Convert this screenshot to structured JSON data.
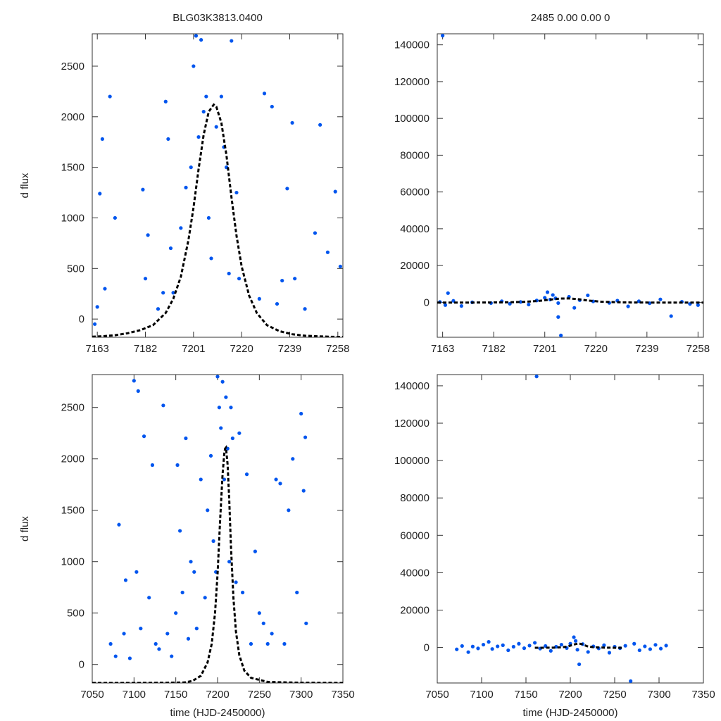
{
  "figure": {
    "left_title": "BLG03K3813.0400",
    "right_title": "2485  0.00  0.00  0",
    "colors": {
      "points": "#0055ee",
      "model": "#000000",
      "frame": "#333333"
    }
  },
  "chart_data": [
    {
      "type": "scatter",
      "panel": "top-left",
      "title": "BLG03K3813.0400",
      "xlabel": "",
      "ylabel": "d flux",
      "xlim": [
        7161,
        7260
      ],
      "ylim": [
        -180,
        2820
      ],
      "xticks": [
        7163,
        7182,
        7201,
        7220,
        7239,
        7258
      ],
      "yticks": [
        0,
        500,
        1000,
        1500,
        2000,
        2500
      ],
      "grid": false,
      "series": [
        {
          "kind": "points",
          "x": [
            7162,
            7163,
            7164,
            7165,
            7166,
            7168,
            7170,
            7181,
            7182,
            7183,
            7187,
            7189,
            7190,
            7191,
            7192,
            7193,
            7196,
            7198,
            7200,
            7201,
            7202,
            7203,
            7204,
            7205,
            7206,
            7207,
            7208,
            7210,
            7212,
            7213,
            7214,
            7215,
            7216,
            7218,
            7219,
            7227,
            7229,
            7232,
            7234,
            7236,
            7238,
            7240,
            7241,
            7245,
            7249,
            7251,
            7254,
            7257,
            7259
          ],
          "y": [
            -50,
            120,
            1240,
            1780,
            300,
            2200,
            1000,
            1280,
            400,
            830,
            100,
            260,
            2150,
            1780,
            700,
            260,
            900,
            1300,
            1500,
            2500,
            2800,
            1800,
            2760,
            2050,
            2200,
            1000,
            600,
            1900,
            2200,
            1700,
            1500,
            450,
            2750,
            1250,
            400,
            200,
            2230,
            2100,
            150,
            380,
            1290,
            1940,
            400,
            100,
            850,
            1920,
            660,
            1260,
            520
          ]
        },
        {
          "kind": "model-curve",
          "x": [
            7161,
            7165,
            7170,
            7175,
            7180,
            7185,
            7190,
            7193,
            7196,
            7199,
            7201,
            7203,
            7205,
            7207,
            7209,
            7210,
            7212,
            7214,
            7216,
            7218,
            7220,
            7223,
            7226,
            7230,
            7235,
            7240,
            7245,
            7250,
            7255,
            7260
          ],
          "y": [
            -175,
            -170,
            -160,
            -140,
            -110,
            -60,
            60,
            200,
            420,
            780,
            1100,
            1480,
            1820,
            2050,
            2120,
            2100,
            1940,
            1620,
            1200,
            820,
            520,
            230,
            60,
            -60,
            -120,
            -150,
            -165,
            -170,
            -175,
            -178
          ]
        }
      ]
    },
    {
      "type": "scatter",
      "panel": "top-right",
      "title": "2485  0.00  0.00  0",
      "xlabel": "",
      "ylabel": "",
      "xlim": [
        7161,
        7260
      ],
      "ylim": [
        -19000,
        146000
      ],
      "xticks": [
        7163,
        7182,
        7201,
        7220,
        7239,
        7258
      ],
      "yticks": [
        0,
        20000,
        40000,
        60000,
        80000,
        100000,
        120000,
        140000
      ],
      "grid": false,
      "series": [
        {
          "kind": "points",
          "x": [
            7162,
            7163,
            7164,
            7165,
            7167,
            7170,
            7174,
            7181,
            7185,
            7188,
            7192,
            7195,
            7198,
            7201,
            7202,
            7203,
            7204,
            7205,
            7206,
            7207,
            7210,
            7212,
            7214,
            7217,
            7219,
            7225,
            7228,
            7232,
            7236,
            7240,
            7244,
            7248,
            7252,
            7255,
            7258,
            7206
          ],
          "y": [
            200,
            145000,
            -1500,
            5000,
            800,
            -2000,
            0,
            -400,
            600,
            -800,
            200,
            -1200,
            1000,
            2500,
            5500,
            1500,
            4000,
            2200,
            -400,
            -18000,
            3000,
            -3000,
            1200,
            3800,
            500,
            -300,
            900,
            -2200,
            600,
            -500,
            1600,
            -7500,
            300,
            -900,
            -1500,
            -8000
          ]
        },
        {
          "kind": "model-curve",
          "x": [
            7161,
            7175,
            7185,
            7193,
            7199,
            7203,
            7207,
            7210,
            7213,
            7217,
            7222,
            7230,
            7245,
            7260
          ],
          "y": [
            -180,
            -140,
            -60,
            200,
            780,
            1480,
            2050,
            2100,
            1800,
            1000,
            350,
            -60,
            -165,
            -178
          ]
        }
      ]
    },
    {
      "type": "scatter",
      "panel": "bottom-left",
      "title": "",
      "xlabel": "time (HJD-2450000)",
      "ylabel": "d flux",
      "xlim": [
        7050,
        7350
      ],
      "ylim": [
        -180,
        2820
      ],
      "xticks": [
        7050,
        7100,
        7150,
        7200,
        7250,
        7300,
        7350
      ],
      "yticks": [
        0,
        500,
        1000,
        1500,
        2000,
        2500
      ],
      "grid": false,
      "series": [
        {
          "kind": "points",
          "x": [
            7072,
            7078,
            7082,
            7088,
            7090,
            7095,
            7100,
            7103,
            7105,
            7108,
            7112,
            7118,
            7122,
            7126,
            7130,
            7135,
            7140,
            7145,
            7150,
            7152,
            7155,
            7158,
            7162,
            7165,
            7168,
            7172,
            7175,
            7180,
            7185,
            7188,
            7192,
            7195,
            7198,
            7200,
            7202,
            7204,
            7206,
            7208,
            7210,
            7212,
            7214,
            7216,
            7218,
            7222,
            7226,
            7230,
            7235,
            7240,
            7245,
            7250,
            7255,
            7260,
            7265,
            7270,
            7275,
            7280,
            7285,
            7290,
            7295,
            7300,
            7303,
            7305,
            7306
          ],
          "y": [
            200,
            80,
            1360,
            300,
            820,
            60,
            2760,
            900,
            2660,
            350,
            2220,
            650,
            1940,
            200,
            150,
            2520,
            300,
            80,
            500,
            1940,
            1300,
            700,
            2200,
            250,
            1000,
            900,
            350,
            1800,
            650,
            1500,
            2030,
            1200,
            900,
            2800,
            2500,
            2300,
            2750,
            1800,
            2600,
            2100,
            1000,
            2500,
            2200,
            800,
            2250,
            700,
            1850,
            200,
            1100,
            500,
            400,
            200,
            300,
            1800,
            1760,
            200,
            1500,
            2000,
            700,
            2440,
            1690,
            2210,
            400
          ]
        },
        {
          "kind": "model-curve",
          "x": [
            7050,
            7100,
            7140,
            7160,
            7170,
            7180,
            7188,
            7193,
            7197,
            7200,
            7203,
            7206,
            7208,
            7209,
            7210,
            7212,
            7214,
            7216,
            7219,
            7222,
            7226,
            7232,
            7240,
            7260,
            7300,
            7350
          ],
          "y": [
            -180,
            -180,
            -178,
            -175,
            -160,
            -110,
            20,
            200,
            500,
            880,
            1400,
            1850,
            2050,
            2100,
            2110,
            1950,
            1600,
            1150,
            650,
            320,
            90,
            -60,
            -130,
            -170,
            -178,
            -180
          ]
        }
      ]
    },
    {
      "type": "scatter",
      "panel": "bottom-right",
      "title": "",
      "xlabel": "time (HJD-2450000)",
      "ylabel": "",
      "xlim": [
        7050,
        7350
      ],
      "ylim": [
        -19000,
        146000
      ],
      "xticks": [
        7050,
        7100,
        7150,
        7200,
        7250,
        7300,
        7350
      ],
      "yticks": [
        0,
        20000,
        40000,
        60000,
        80000,
        100000,
        120000,
        140000
      ],
      "grid": false,
      "series": [
        {
          "kind": "points",
          "x": [
            7072,
            7078,
            7085,
            7090,
            7096,
            7102,
            7108,
            7112,
            7118,
            7124,
            7130,
            7136,
            7142,
            7148,
            7154,
            7160,
            7162,
            7166,
            7172,
            7178,
            7184,
            7190,
            7196,
            7200,
            7204,
            7206,
            7208,
            7210,
            7214,
            7220,
            7226,
            7232,
            7238,
            7244,
            7250,
            7256,
            7262,
            7268,
            7272,
            7278,
            7284,
            7290,
            7296,
            7302,
            7308
          ],
          "y": [
            -1000,
            800,
            -2500,
            500,
            -500,
            1500,
            3000,
            -800,
            600,
            1200,
            -1500,
            400,
            2000,
            -400,
            1000,
            2500,
            145000,
            -600,
            800,
            -1800,
            400,
            1500,
            -300,
            2000,
            5500,
            3500,
            -1200,
            -9000,
            1800,
            -2400,
            600,
            -500,
            1200,
            -2800,
            400,
            -400,
            900,
            -18000,
            2000,
            -1500,
            600,
            -900,
            1400,
            -600,
            1000
          ]
        },
        {
          "kind": "model-curve",
          "x": [
            7160,
            7180,
            7190,
            7197,
            7203,
            7208,
            7210,
            7214,
            7219,
            7226,
            7240,
            7260
          ],
          "y": [
            -175,
            -110,
            60,
            500,
            1400,
            2050,
            2110,
            1600,
            650,
            90,
            -130,
            -170
          ]
        }
      ]
    }
  ]
}
